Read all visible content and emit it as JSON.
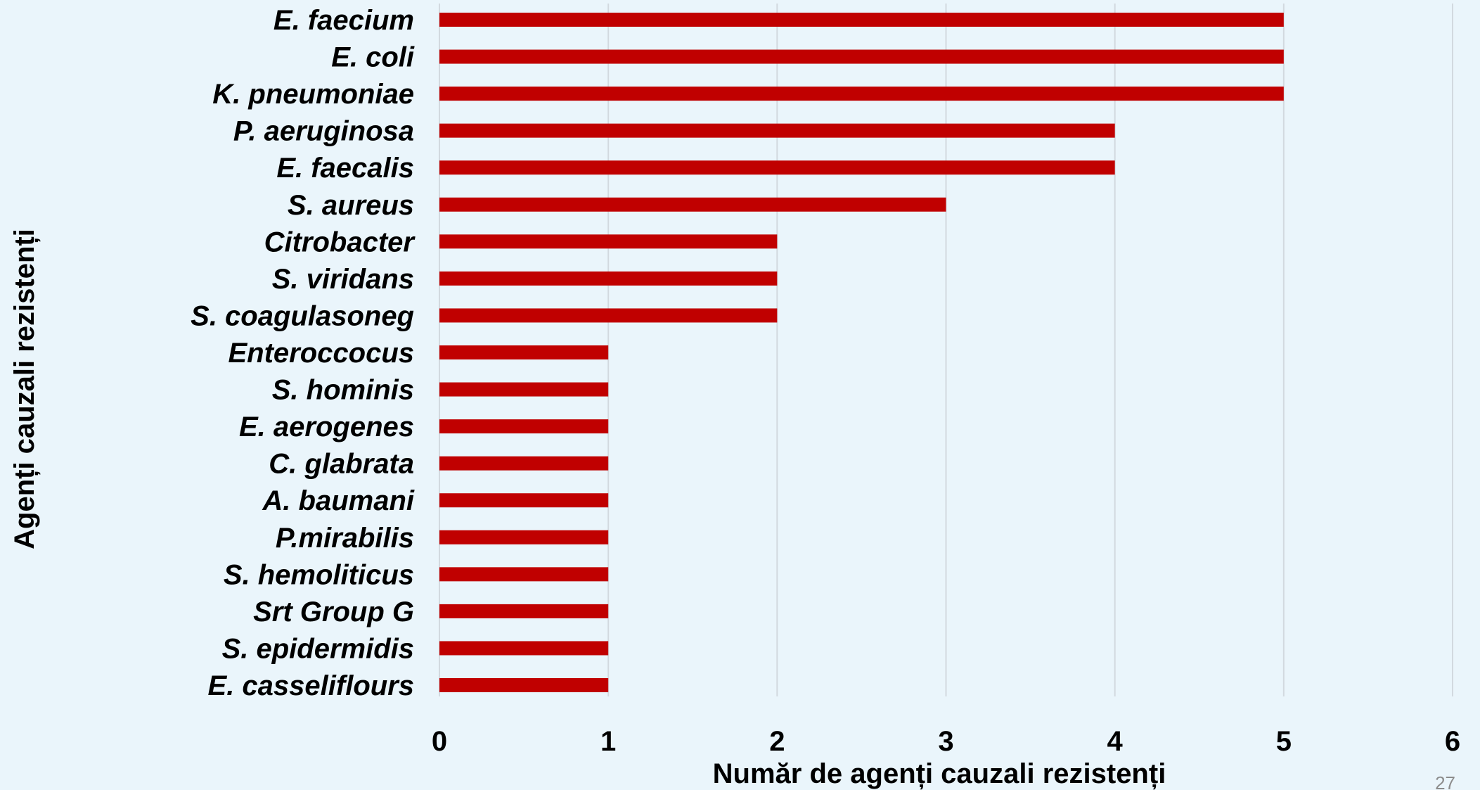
{
  "slide": {
    "page_number": "27"
  },
  "chart_data": {
    "type": "bar",
    "orientation": "horizontal",
    "categories": [
      "E. faecium",
      "E. coli",
      "K. pneumoniae",
      "P. aeruginosa",
      "E. faecalis",
      "S. aureus",
      "Citrobacter",
      "S. viridans",
      "S. coagulasoneg",
      "Enteroccocus",
      "S. hominis",
      "E. aerogenes",
      "C. glabrata",
      "A. baumani",
      "P.mirabilis",
      "S. hemoliticus",
      "Srt Group G",
      "S. epidermidis",
      "E. casseliflours"
    ],
    "values": [
      5,
      5,
      5,
      4,
      4,
      3,
      2,
      2,
      2,
      1,
      1,
      1,
      1,
      1,
      1,
      1,
      1,
      1,
      1
    ],
    "xlabel": "Număr de agenți cauzali rezistenți",
    "ylabel": "Agenți cauzali rezistenți",
    "xlim": [
      0,
      6
    ],
    "xticks": [
      "0",
      "1",
      "2",
      "3",
      "4",
      "5",
      "6"
    ],
    "grid": true,
    "legend": "none",
    "bar_color": "#c00000",
    "grid_color": "#d2d9df",
    "background_color": "#eaf5fb"
  }
}
